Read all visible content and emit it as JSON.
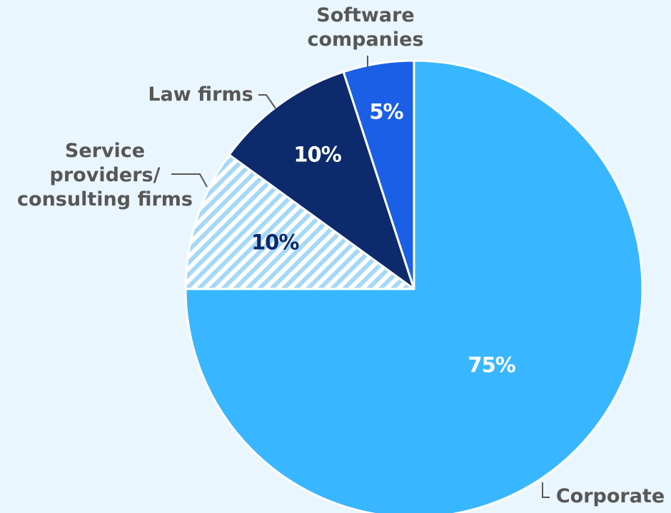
{
  "chart_data": {
    "type": "pie",
    "categories": [
      "Corporate",
      "Service\nproviders/\nconsulting firms",
      "Law firms",
      "Software\ncompanies"
    ],
    "values": [
      75,
      10,
      10,
      5
    ],
    "value_labels": [
      "75%",
      "10%",
      "10%",
      "5%"
    ],
    "colors": [
      "#38b6ff",
      "#a6d8f7",
      "#0c2a6c",
      "#1b5fe6"
    ],
    "hatch": [
      false,
      true,
      false,
      false
    ]
  }
}
